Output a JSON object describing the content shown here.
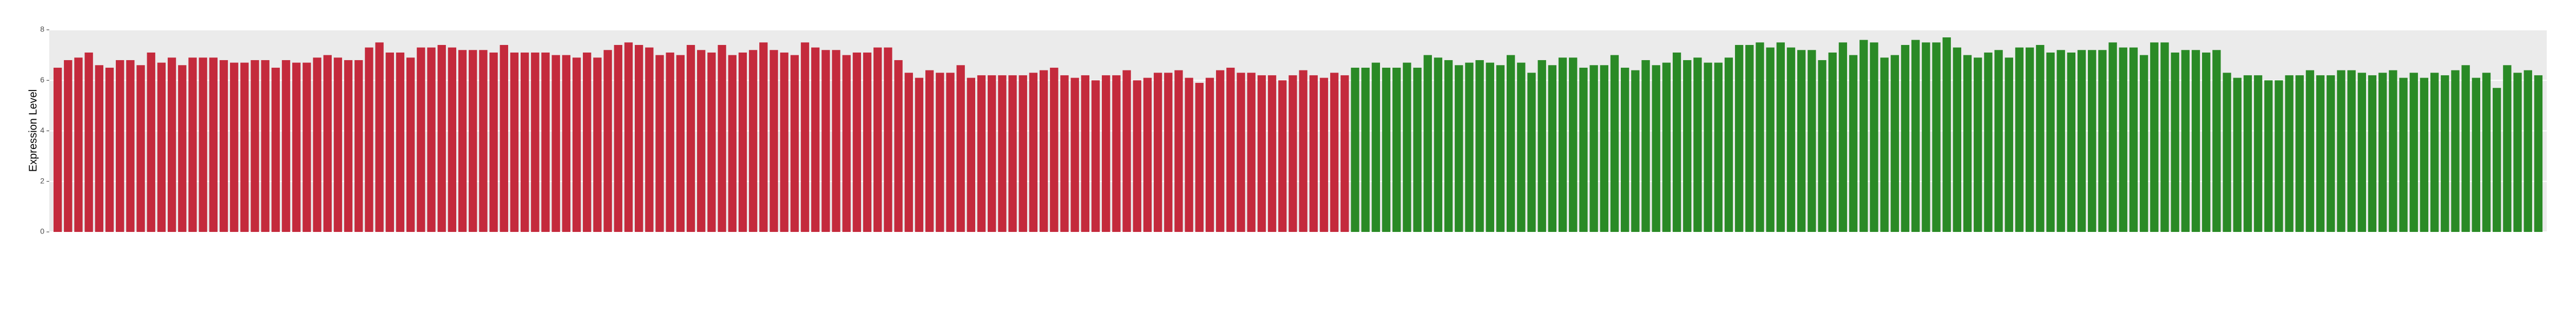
{
  "chart_data": {
    "type": "bar",
    "ylabel": "Expression Level",
    "ylim": [
      0,
      8
    ],
    "yticks": [
      0,
      2,
      4,
      6,
      8
    ],
    "grid": true,
    "series": [
      {
        "color": "#c42a3c",
        "categories": [
          null,
          null,
          null,
          null,
          null,
          null,
          null,
          null,
          null,
          null,
          null,
          null,
          null,
          null,
          null,
          null,
          null,
          null,
          null,
          null,
          null,
          null,
          null,
          null,
          null,
          null,
          null,
          null,
          null,
          null,
          null,
          null,
          null,
          null,
          null,
          null,
          null,
          null,
          null,
          null,
          null,
          null,
          null,
          null,
          null,
          null,
          null,
          null,
          null,
          null,
          null,
          null,
          null,
          null,
          null,
          null,
          null,
          null,
          null,
          null,
          null,
          null,
          null,
          null,
          null,
          null,
          null,
          null,
          null,
          null,
          null,
          null,
          null,
          null,
          null,
          null,
          null,
          null,
          null,
          null,
          null,
          null,
          null,
          null,
          null,
          null,
          null,
          null,
          null,
          null,
          null,
          null,
          null,
          null,
          null,
          null,
          null,
          null,
          null,
          null,
          null,
          null,
          null,
          null,
          null,
          null,
          null,
          null,
          null,
          null,
          null,
          null,
          null,
          null,
          null,
          null,
          null,
          null,
          null,
          null,
          null,
          null,
          null,
          null,
          null
        ],
        "values": [
          6.5,
          6.8,
          6.9,
          7.1,
          6.6,
          6.5,
          6.8,
          6.8,
          6.6,
          7.1,
          6.7,
          6.9,
          6.6,
          6.9,
          6.9,
          6.9,
          6.8,
          6.7,
          6.7,
          6.8,
          6.8,
          6.5,
          6.8,
          6.7,
          6.7,
          6.9,
          7.0,
          6.9,
          6.8,
          6.8,
          7.3,
          7.5,
          7.1,
          7.1,
          6.9,
          7.3,
          7.3,
          7.4,
          7.3,
          7.2,
          7.2,
          7.2,
          7.1,
          7.4,
          7.1,
          7.1,
          7.1,
          7.1,
          7.0,
          7.0,
          6.9,
          7.1,
          6.9,
          7.2,
          7.4,
          7.5,
          7.4,
          7.3,
          7.0,
          7.1,
          7.0,
          7.4,
          7.2,
          7.1,
          7.4,
          7.0,
          7.1,
          7.2,
          7.5,
          7.2,
          7.1,
          7.0,
          7.5,
          7.3,
          7.2,
          7.2,
          7.0,
          7.1,
          7.1,
          7.3,
          7.3,
          6.8,
          6.3,
          6.1,
          6.4,
          6.3,
          6.3,
          6.6,
          6.1,
          6.2,
          6.2,
          6.2,
          6.2,
          6.2,
          6.3,
          6.4,
          6.5,
          6.2,
          6.1,
          6.2,
          6.0,
          6.2,
          6.2,
          6.4,
          6.0,
          6.1,
          6.3,
          6.3,
          6.4,
          6.1,
          5.9,
          6.1,
          6.4,
          6.5,
          6.3,
          6.3,
          6.2,
          6.2,
          6.0,
          6.2,
          6.4,
          6.2,
          6.1,
          6.3,
          6.2
        ]
      },
      {
        "color": "#2a8a26",
        "categories": [
          null,
          null,
          null,
          null,
          null,
          null,
          null,
          null,
          null,
          null,
          null,
          null,
          null,
          null,
          null,
          null,
          null,
          null,
          null,
          null,
          null,
          null,
          null,
          null,
          null,
          null,
          null,
          null,
          null,
          null,
          null,
          null,
          null,
          null,
          null,
          null,
          null,
          null,
          null,
          null,
          null,
          null,
          null,
          null,
          null,
          null,
          null,
          null,
          null,
          null,
          null,
          null,
          null,
          null,
          null,
          null,
          null,
          null,
          null,
          null,
          null,
          null,
          null,
          null,
          null,
          null,
          null,
          null,
          null,
          null,
          null,
          null,
          null,
          null,
          null,
          null,
          null,
          null,
          null,
          null,
          null,
          null,
          null,
          null,
          null,
          null,
          null,
          null,
          null,
          null,
          null,
          null,
          null,
          null,
          null,
          null,
          null,
          null,
          null,
          null,
          null,
          null,
          null,
          null,
          null,
          null,
          null,
          null,
          null,
          null,
          null,
          null,
          null,
          null,
          null
        ],
        "values": [
          6.5,
          6.5,
          6.7,
          6.5,
          6.5,
          6.7,
          6.5,
          7.0,
          6.9,
          6.8,
          6.6,
          6.7,
          6.8,
          6.7,
          6.6,
          7.0,
          6.7,
          6.3,
          6.8,
          6.6,
          6.9,
          6.9,
          6.5,
          6.6,
          6.6,
          7.0,
          6.5,
          6.4,
          6.8,
          6.6,
          6.7,
          7.1,
          6.8,
          6.9,
          6.7,
          6.7,
          6.9,
          7.4,
          7.4,
          7.5,
          7.3,
          7.5,
          7.3,
          7.2,
          7.2,
          6.8,
          7.1,
          7.5,
          7.0,
          7.6,
          7.5,
          6.9,
          7.0,
          7.4,
          7.6,
          7.5,
          7.5,
          7.7,
          7.3,
          7.0,
          6.9,
          7.1,
          7.2,
          6.9,
          7.3,
          7.3,
          7.4,
          7.1,
          7.2,
          7.1,
          7.2,
          7.2,
          7.2,
          7.5,
          7.3,
          7.3,
          7.0,
          7.5,
          7.5,
          7.1,
          7.2,
          7.2,
          7.1,
          7.2,
          6.3,
          6.1,
          6.2,
          6.2,
          6.0,
          6.0,
          6.2,
          6.2,
          6.4,
          6.2,
          6.2,
          6.4,
          6.4,
          6.3,
          6.2,
          6.3,
          6.4,
          6.1,
          6.3,
          6.1,
          6.3,
          6.2,
          6.4,
          6.6,
          6.1,
          6.3,
          5.7,
          6.6,
          6.3,
          6.4,
          6.2
        ]
      }
    ]
  }
}
